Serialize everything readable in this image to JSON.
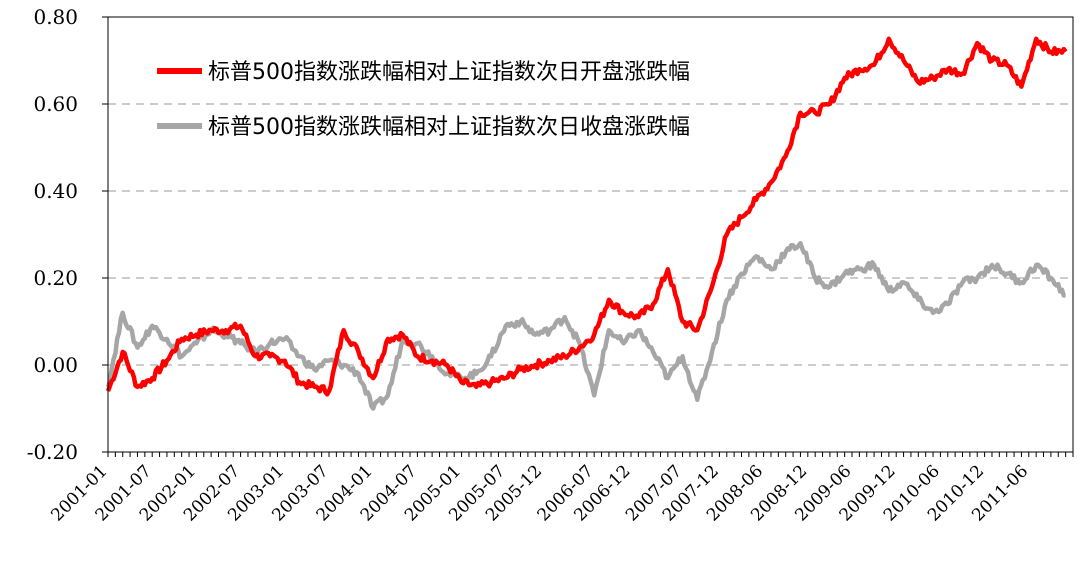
{
  "chart_data": {
    "type": "line",
    "ylim": [
      -0.2,
      0.8
    ],
    "yticks": [
      "0.80",
      "0.60",
      "0.40",
      "0.20",
      "0.00",
      "-0.20"
    ],
    "ytick_values": [
      0.8,
      0.6,
      0.4,
      0.2,
      0.0,
      -0.2
    ],
    "grid": "horizontal dashed",
    "legend_position": "top-left",
    "x_dates": [
      "2001-01",
      "2001-03",
      "2001-05",
      "2001-07",
      "2001-09",
      "2001-11",
      "2002-01",
      "2002-03",
      "2002-05",
      "2002-07",
      "2002-09",
      "2002-11",
      "2003-01",
      "2003-03",
      "2003-05",
      "2003-07",
      "2003-09",
      "2003-11",
      "2004-01",
      "2004-03",
      "2004-05",
      "2004-07",
      "2004-09",
      "2004-11",
      "2005-01",
      "2005-03",
      "2005-05",
      "2005-07",
      "2005-09",
      "2005-11",
      "2006-01",
      "2006-03",
      "2006-05",
      "2006-07",
      "2006-09",
      "2006-11",
      "2007-01",
      "2007-03",
      "2007-05",
      "2007-07",
      "2007-09",
      "2007-11",
      "2008-01",
      "2008-03",
      "2008-05",
      "2008-07",
      "2008-09",
      "2008-11",
      "2009-01",
      "2009-03",
      "2009-05",
      "2009-07",
      "2009-09",
      "2009-11",
      "2010-01",
      "2010-03",
      "2010-05",
      "2010-07",
      "2010-09",
      "2010-11",
      "2011-01",
      "2011-03",
      "2011-05",
      "2011-07",
      "2011-09",
      "2011-11"
    ],
    "x_ticks": [
      "2001-01",
      "2001-07",
      "2002-01",
      "2002-07",
      "2003-01",
      "2003-07",
      "2004-01",
      "2004-07",
      "2005-01",
      "2005-07",
      "2005-12",
      "2006-07",
      "2006-12",
      "2007-07",
      "2007-12",
      "2008-06",
      "2008-12",
      "2009-06",
      "2009-12",
      "2010-06",
      "2010-12",
      "2011-06"
    ],
    "series": [
      {
        "name": "标普500指数涨跌幅相对上证指数次日开盘涨跌幅",
        "color": "#ff0000",
        "values": [
          -0.06,
          0.03,
          -0.05,
          -0.03,
          0.01,
          0.06,
          0.07,
          0.08,
          0.08,
          0.09,
          0.02,
          0.02,
          0.01,
          -0.04,
          -0.05,
          -0.06,
          0.08,
          0.03,
          -0.03,
          0.06,
          0.07,
          0.02,
          0.01,
          0.0,
          -0.04,
          -0.05,
          -0.04,
          -0.03,
          -0.01,
          0.0,
          0.01,
          0.02,
          0.04,
          0.07,
          0.15,
          0.12,
          0.11,
          0.14,
          0.22,
          0.1,
          0.08,
          0.18,
          0.3,
          0.34,
          0.38,
          0.42,
          0.48,
          0.58,
          0.58,
          0.6,
          0.66,
          0.68,
          0.69,
          0.75,
          0.7,
          0.65,
          0.66,
          0.68,
          0.67,
          0.74,
          0.7,
          0.69,
          0.64,
          0.75,
          0.72,
          0.72
        ]
      },
      {
        "name": "标普500指数涨跌幅相对上证指数次日收盘涨跌幅",
        "color": "#a6a6a6",
        "values": [
          -0.05,
          0.12,
          0.04,
          0.09,
          0.06,
          0.02,
          0.05,
          0.08,
          0.07,
          0.05,
          0.03,
          0.05,
          0.06,
          0.02,
          -0.01,
          0.01,
          0.0,
          -0.02,
          -0.1,
          -0.07,
          0.06,
          0.05,
          0.02,
          -0.02,
          -0.03,
          -0.02,
          0.02,
          0.09,
          0.1,
          0.07,
          0.08,
          0.11,
          0.05,
          -0.07,
          0.08,
          0.05,
          0.08,
          0.03,
          -0.03,
          0.02,
          -0.08,
          0.03,
          0.15,
          0.21,
          0.25,
          0.22,
          0.26,
          0.28,
          0.2,
          0.18,
          0.21,
          0.22,
          0.23,
          0.17,
          0.19,
          0.15,
          0.12,
          0.14,
          0.19,
          0.2,
          0.23,
          0.21,
          0.19,
          0.23,
          0.2,
          0.16
        ]
      }
    ]
  }
}
